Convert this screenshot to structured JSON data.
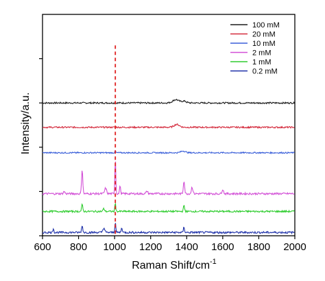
{
  "chart_data": {
    "type": "line",
    "xlabel": "Raman Shift/cm",
    "xlabel_sup": "-1",
    "ylabel": "Intensity/a.u.",
    "xlim": [
      600,
      2000
    ],
    "xticks": [
      600,
      800,
      1000,
      1200,
      1400,
      1600,
      1800,
      2000
    ],
    "ylim": [
      0,
      100
    ],
    "y_ticks_unlabeled": [
      0,
      20,
      40,
      60,
      80
    ],
    "legend_position": "top-right",
    "reference_line": {
      "x": 1004,
      "color": "#e02020",
      "style": "dashed"
    },
    "series": [
      {
        "name": "100 mM",
        "color": "#1a1a1a",
        "baseline": 60,
        "noise": 0.35,
        "peaks": [
          [
            1340,
            1.5,
            40
          ],
          [
            1385,
            0.8,
            30
          ]
        ]
      },
      {
        "name": "20 mM",
        "color": "#d42a3c",
        "baseline": 49,
        "noise": 0.35,
        "peaks": [
          [
            1345,
            1.3,
            35
          ],
          [
            1004,
            0.4,
            8
          ]
        ]
      },
      {
        "name": "10 mM",
        "color": "#3a5fd9",
        "baseline": 37.5,
        "noise": 0.3,
        "peaks": [
          [
            1004,
            0.5,
            8
          ],
          [
            1380,
            0.8,
            30
          ]
        ]
      },
      {
        "name": "2 mM",
        "color": "#d24fd6",
        "baseline": 19,
        "noise": 0.45,
        "peaks": [
          [
            820,
            11,
            8
          ],
          [
            720,
            1,
            10
          ],
          [
            950,
            2.5,
            12
          ],
          [
            1004,
            16,
            6
          ],
          [
            1030,
            4,
            6
          ],
          [
            1180,
            1.2,
            10
          ],
          [
            1385,
            6,
            8
          ],
          [
            1430,
            3,
            10
          ],
          [
            1600,
            2,
            10
          ]
        ]
      },
      {
        "name": "1 mM",
        "color": "#2ecc2e",
        "baseline": 11,
        "noise": 0.4,
        "peaks": [
          [
            820,
            3,
            8
          ],
          [
            1004,
            4,
            6
          ],
          [
            940,
            1.2,
            10
          ],
          [
            1385,
            2.5,
            8
          ]
        ]
      },
      {
        "name": "0.2 mM",
        "color": "#1c2fa8",
        "baseline": 1.5,
        "noise": 0.45,
        "peaks": [
          [
            660,
            2,
            6
          ],
          [
            820,
            3,
            8
          ],
          [
            940,
            2,
            12
          ],
          [
            1004,
            5,
            6
          ],
          [
            1040,
            2,
            8
          ],
          [
            1385,
            2.5,
            7
          ]
        ]
      }
    ]
  }
}
